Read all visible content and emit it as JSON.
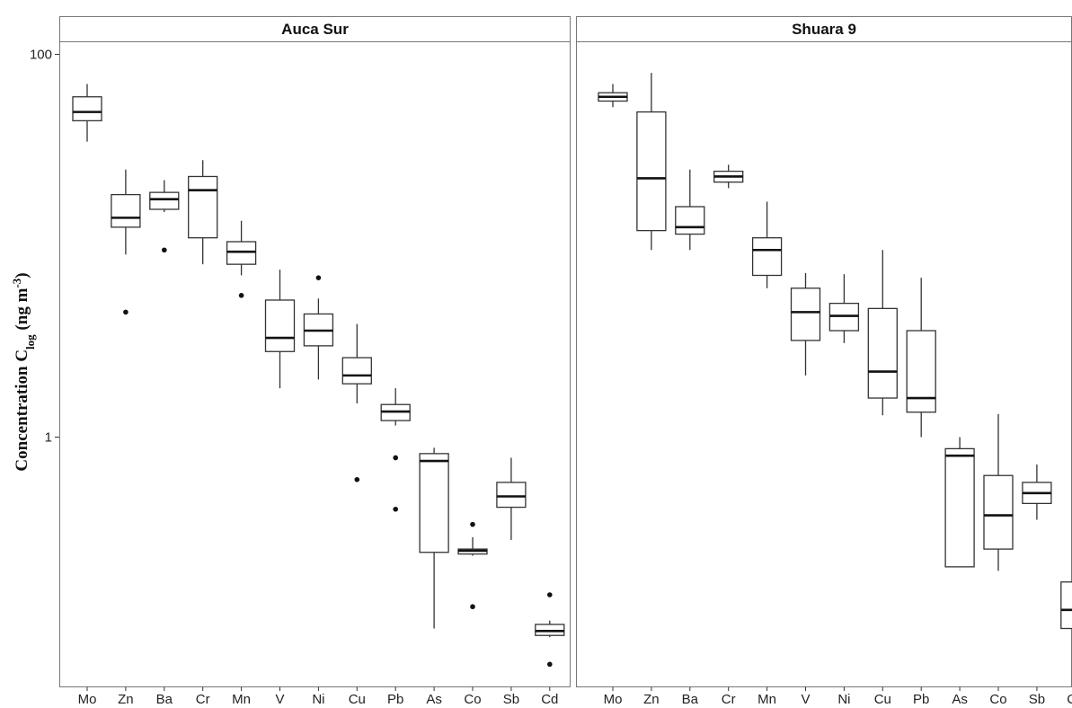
{
  "chart_data": {
    "type": "boxplot",
    "ylabel": {
      "prefix": "Concentration C",
      "subscript": "log",
      "units_pre": " (ng m",
      "units_sup": "-3",
      "units_post": ")"
    },
    "y_scale": "log10",
    "ylim": [
      0.055,
      120
    ],
    "y_ticks": [
      {
        "value": 100,
        "label": "100"
      },
      {
        "value": 1,
        "label": "1"
      }
    ],
    "categories": [
      "Mo",
      "Zn",
      "Ba",
      "Cr",
      "Mn",
      "V",
      "Ni",
      "Cu",
      "Pb",
      "As",
      "Co",
      "Sb",
      "Cd"
    ],
    "grid": false,
    "colors": {
      "box_stroke": "#333333",
      "box_fill": "#ffffff",
      "panel_border": "#777777",
      "strip_fill": "#ffffff"
    },
    "panels": [
      {
        "title": "Auca Sur",
        "boxes": [
          {
            "cat": "Mo",
            "min": 35,
            "q1": 45,
            "median": 50,
            "q3": 60,
            "max": 70,
            "outliers": []
          },
          {
            "cat": "Zn",
            "min": 9,
            "q1": 12.5,
            "median": 14,
            "q3": 18.5,
            "max": 25,
            "outliers": [
              4.5
            ]
          },
          {
            "cat": "Ba",
            "min": 15,
            "q1": 15.5,
            "median": 17.5,
            "q3": 19,
            "max": 22,
            "outliers": [
              9.5
            ]
          },
          {
            "cat": "Cr",
            "min": 8,
            "q1": 11,
            "median": 19.5,
            "q3": 23,
            "max": 28,
            "outliers": []
          },
          {
            "cat": "Mn",
            "min": 7,
            "q1": 8,
            "median": 9.3,
            "q3": 10.5,
            "max": 13.5,
            "outliers": [
              5.5
            ]
          },
          {
            "cat": "V",
            "min": 1.8,
            "q1": 2.8,
            "median": 3.3,
            "q3": 5.2,
            "max": 7.5,
            "outliers": []
          },
          {
            "cat": "Ni",
            "min": 2.0,
            "q1": 3.0,
            "median": 3.6,
            "q3": 4.4,
            "max": 5.3,
            "outliers": [
              6.8
            ]
          },
          {
            "cat": "Cu",
            "min": 1.5,
            "q1": 1.9,
            "median": 2.1,
            "q3": 2.6,
            "max": 3.9,
            "outliers": [
              0.6
            ]
          },
          {
            "cat": "Pb",
            "min": 1.15,
            "q1": 1.22,
            "median": 1.36,
            "q3": 1.48,
            "max": 1.8,
            "outliers": [
              0.78,
              0.42
            ]
          },
          {
            "cat": "As",
            "min": 0.1,
            "q1": 0.25,
            "median": 0.75,
            "q3": 0.82,
            "max": 0.88,
            "outliers": []
          },
          {
            "cat": "Co",
            "min": 0.24,
            "q1": 0.245,
            "median": 0.255,
            "q3": 0.26,
            "max": 0.3,
            "outliers": [
              0.35,
              0.13
            ]
          },
          {
            "cat": "Sb",
            "min": 0.29,
            "q1": 0.43,
            "median": 0.49,
            "q3": 0.58,
            "max": 0.78,
            "outliers": []
          },
          {
            "cat": "Cd",
            "min": 0.09,
            "q1": 0.092,
            "median": 0.097,
            "q3": 0.105,
            "max": 0.11,
            "outliers": [
              0.15,
              0.065
            ]
          }
        ]
      },
      {
        "title": "Shuara 9",
        "boxes": [
          {
            "cat": "Mo",
            "min": 53,
            "q1": 57,
            "median": 60,
            "q3": 63,
            "max": 70,
            "outliers": []
          },
          {
            "cat": "Zn",
            "min": 9.5,
            "q1": 12,
            "median": 22.5,
            "q3": 50,
            "max": 80,
            "outliers": []
          },
          {
            "cat": "Ba",
            "min": 9.5,
            "q1": 11.5,
            "median": 12.5,
            "q3": 16,
            "max": 25,
            "outliers": []
          },
          {
            "cat": "Cr",
            "min": 20,
            "q1": 21.5,
            "median": 23,
            "q3": 24.5,
            "max": 26.5,
            "outliers": []
          },
          {
            "cat": "Mn",
            "min": 6,
            "q1": 7,
            "median": 9.5,
            "q3": 11,
            "max": 17,
            "outliers": []
          },
          {
            "cat": "V",
            "min": 2.1,
            "q1": 3.2,
            "median": 4.5,
            "q3": 6,
            "max": 7.2,
            "outliers": []
          },
          {
            "cat": "Ni",
            "min": 3.1,
            "q1": 3.6,
            "median": 4.3,
            "q3": 5,
            "max": 7.1,
            "outliers": []
          },
          {
            "cat": "Cu",
            "min": 1.3,
            "q1": 1.6,
            "median": 2.2,
            "q3": 4.7,
            "max": 9.5,
            "outliers": []
          },
          {
            "cat": "Pb",
            "min": 1.0,
            "q1": 1.35,
            "median": 1.6,
            "q3": 3.6,
            "max": 6.8,
            "outliers": []
          },
          {
            "cat": "As",
            "min": 0.21,
            "q1": 0.21,
            "median": 0.8,
            "q3": 0.87,
            "max": 1.0,
            "outliers": []
          },
          {
            "cat": "Co",
            "min": 0.2,
            "q1": 0.26,
            "median": 0.39,
            "q3": 0.63,
            "max": 1.32,
            "outliers": []
          },
          {
            "cat": "Sb",
            "min": 0.37,
            "q1": 0.45,
            "median": 0.51,
            "q3": 0.58,
            "max": 0.72,
            "outliers": []
          },
          {
            "cat": "Cd",
            "min": 0.07,
            "q1": 0.1,
            "median": 0.125,
            "q3": 0.175,
            "max": 0.36,
            "outliers": []
          }
        ]
      }
    ]
  }
}
